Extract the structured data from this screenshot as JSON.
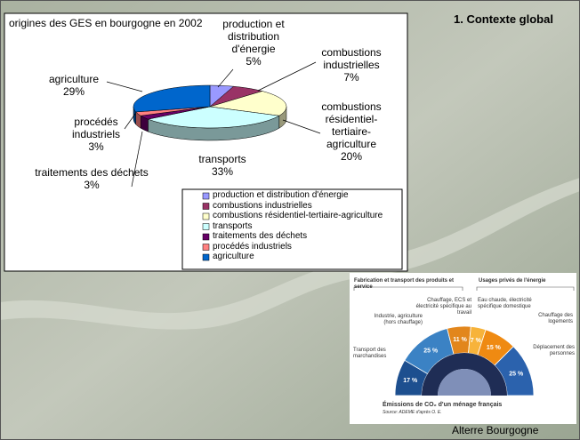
{
  "slide": {
    "heading": "1. Contexte global",
    "credit": "Alterre Bourgogne"
  },
  "chart_data": [
    {
      "type": "pie",
      "title": "origines des GES en bourgogne en 2002",
      "categories": [
        "production et distribution d'énergie",
        "combustions industrielles",
        "combustions résidentiel-tertiaire-agriculture",
        "transports",
        "traitements des déchets",
        "procédés industriels",
        "agriculture"
      ],
      "values": [
        5,
        7,
        20,
        33,
        3,
        3,
        29
      ],
      "value_labels": [
        "5%",
        "7%",
        "20%",
        "33%",
        "3%",
        "3%",
        "29%"
      ],
      "colors": [
        "#9999ff",
        "#993366",
        "#ffffcc",
        "#ccffff",
        "#660066",
        "#ff8080",
        "#0066cc"
      ],
      "legend": "bottom-right"
    },
    {
      "type": "donut",
      "title": "Émissions de CO₂ d'un ménage français",
      "source": "Source: ADEME d'après O. E.",
      "group_labels": [
        "Fabrication et transport des produits et service",
        "Usages privés de l'énergie"
      ],
      "categories": [
        "Transport des marchandises",
        "Industrie, agriculture (hors chauffage)",
        "Chauffage, ECS et électricité spécifique au travail",
        "Eau chaude, électricité spécifique domestique",
        "Chauffage des logements",
        "Déplacement des personnes"
      ],
      "values": [
        17,
        25,
        11,
        7,
        15,
        25
      ],
      "value_labels": [
        "17 %",
        "25 %",
        "11 %",
        "7 %",
        "15 %",
        "25 %"
      ],
      "colors": [
        "#1d4f8f",
        "#3b82c4",
        "#e2861c",
        "#f7b33a",
        "#ef8a12",
        "#2b62ad"
      ]
    }
  ]
}
